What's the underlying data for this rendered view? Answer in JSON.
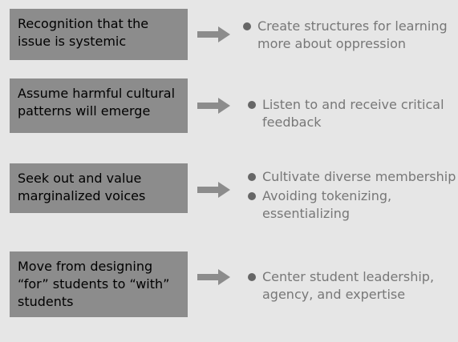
{
  "colors": {
    "background": "#e6e6e6",
    "box_fill": "#8c8c8c",
    "arrow": "#8c8c8c",
    "bullet_text": "#777777",
    "bullet_dot": "#666666"
  },
  "rows": [
    {
      "cause": "Recognition that the issue is systemic",
      "bullets": [
        "Create structures for learning more about oppression"
      ]
    },
    {
      "cause": "Assume harmful cultural patterns will emerge",
      "bullets": [
        "Listen to and receive critical feedback"
      ]
    },
    {
      "cause": "Seek out and value marginalized voices",
      "bullets": [
        "Cultivate diverse membership",
        "Avoiding tokenizing, essentializing"
      ]
    },
    {
      "cause": "Move from designing “for” students to “with” students",
      "bullets": [
        "Center student leadership, agency, and expertise"
      ]
    }
  ]
}
